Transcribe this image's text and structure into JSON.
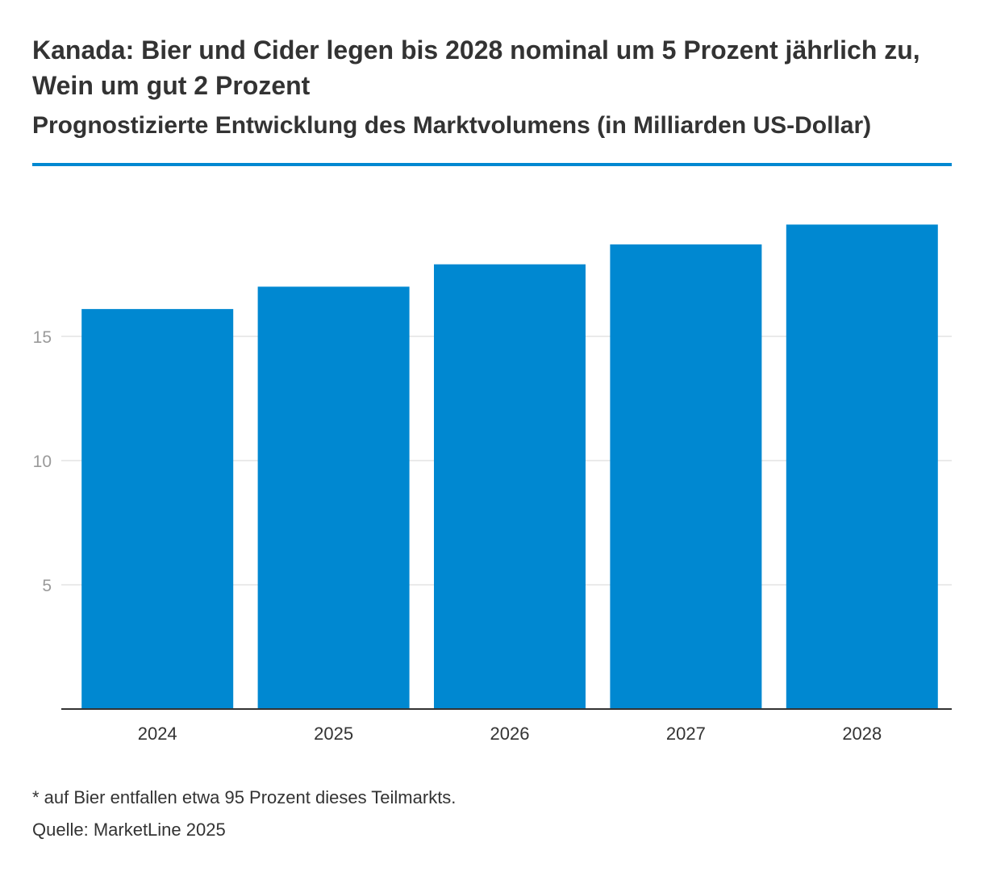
{
  "header": {
    "title": "Kanada: Bier und Cider legen bis 2028 nominal um 5 Prozent jährlich zu, Wein um gut 2 Prozent",
    "subtitle": "Prognostizierte Entwicklung des Marktvolumens (in Milliarden US-Dollar)"
  },
  "footer": {
    "footnote": "* auf Bier entfallen etwa 95 Prozent dieses Teilmarkts.",
    "source": "Quelle: MarketLine 2025"
  },
  "colors": {
    "bar": "#0088d1",
    "accent_rule": "#0088d1",
    "gridline": "#e3e3e3",
    "axis": "#333333",
    "tick_text_y": "#9a9a9a",
    "tick_text_x": "#333333"
  },
  "chart_data": {
    "type": "bar",
    "title": "Kanada: Bier und Cider legen bis 2028 nominal um 5 Prozent jährlich zu, Wein um gut 2 Prozent",
    "subtitle": "Prognostizierte Entwicklung des Marktvolumens (in Milliarden US-Dollar)",
    "categories": [
      "2024",
      "2025",
      "2026",
      "2027",
      "2028"
    ],
    "values": [
      16.1,
      17.0,
      17.9,
      18.7,
      19.5
    ],
    "xlabel": "",
    "ylabel": "",
    "ylim": [
      0,
      20
    ],
    "yticks": [
      5,
      10,
      15
    ],
    "grid": true,
    "legend": "none"
  }
}
